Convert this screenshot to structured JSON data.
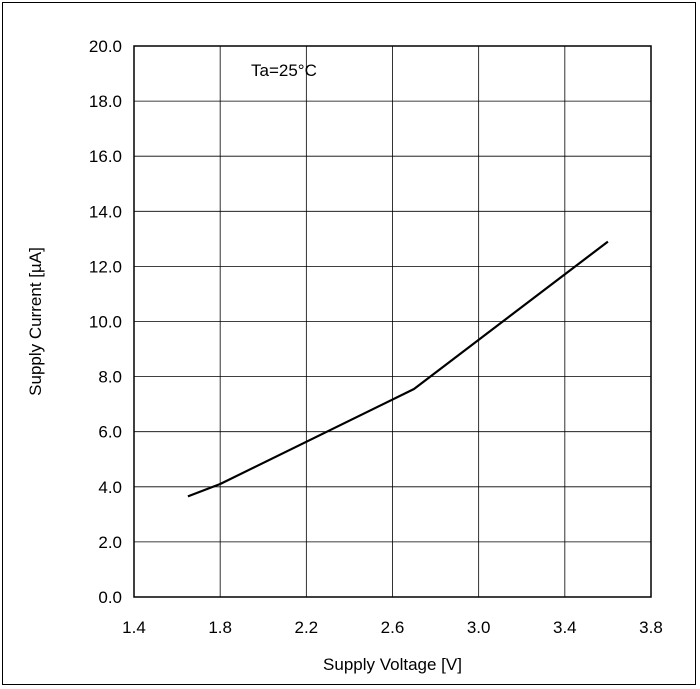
{
  "chart_data": {
    "type": "line",
    "annotation": "Ta=25°C",
    "xlabel": "Supply Voltage [V]",
    "ylabel": "Supply Current [µA]",
    "xlim": [
      1.4,
      3.8
    ],
    "ylim": [
      0.0,
      20.0
    ],
    "x_ticks": [
      "1.4",
      "1.8",
      "2.2",
      "2.6",
      "3.0",
      "3.4",
      "3.8"
    ],
    "y_ticks": [
      "0.0",
      "2.0",
      "4.0",
      "6.0",
      "8.0",
      "10.0",
      "12.0",
      "14.0",
      "16.0",
      "18.0",
      "20.0"
    ],
    "grid": true,
    "series": [
      {
        "x": [
          1.65,
          1.8,
          2.7,
          3.6
        ],
        "y": [
          3.65,
          4.1,
          7.55,
          12.9
        ],
        "color": "#000000"
      }
    ]
  }
}
